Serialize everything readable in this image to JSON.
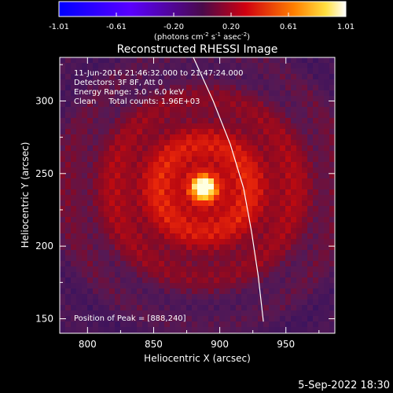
{
  "colorbar": {
    "ticks": [
      "-1.01",
      "-0.61",
      "-0.20",
      "0.20",
      "0.61",
      "1.01"
    ],
    "unit_label": "(photons cm",
    "unit_exp1": "-2",
    "unit_mid1": " s",
    "unit_exp2": "-1",
    "unit_mid2": " asec",
    "unit_exp3": "-2",
    "unit_end": ")"
  },
  "plot": {
    "title": "Reconstructed RHESSI Image",
    "annotations": [
      "11-Jun-2016 21:46:32.000 to 21:47:24.000",
      "Detectors: 3F 8F, Att 0",
      "Energy Range: 3.0 - 6.0 keV",
      "Clean     Total counts: 1.96E+03"
    ],
    "peak_label": "Position of Peak = [888,240]"
  },
  "footer": {
    "timestamp": "5-Sep-2022 18:30"
  },
  "chart_data": {
    "type": "heatmap",
    "xlabel": "Heliocentric X (arcsec)",
    "ylabel": "Heliocentric Y (arcsec)",
    "xlim": [
      779,
      987
    ],
    "ylim": [
      140,
      330
    ],
    "x_ticks": [
      800,
      850,
      900,
      950
    ],
    "y_ticks": [
      150,
      200,
      250,
      300
    ],
    "colorbar_range": [
      -1.01,
      1.01
    ],
    "peak": {
      "x": 888,
      "y": 240
    },
    "limb": [
      [
        880,
        330
      ],
      [
        895,
        300
      ],
      [
        908,
        270
      ],
      [
        918,
        240
      ],
      [
        924,
        210
      ],
      [
        929,
        180
      ],
      [
        933,
        148
      ]
    ]
  }
}
